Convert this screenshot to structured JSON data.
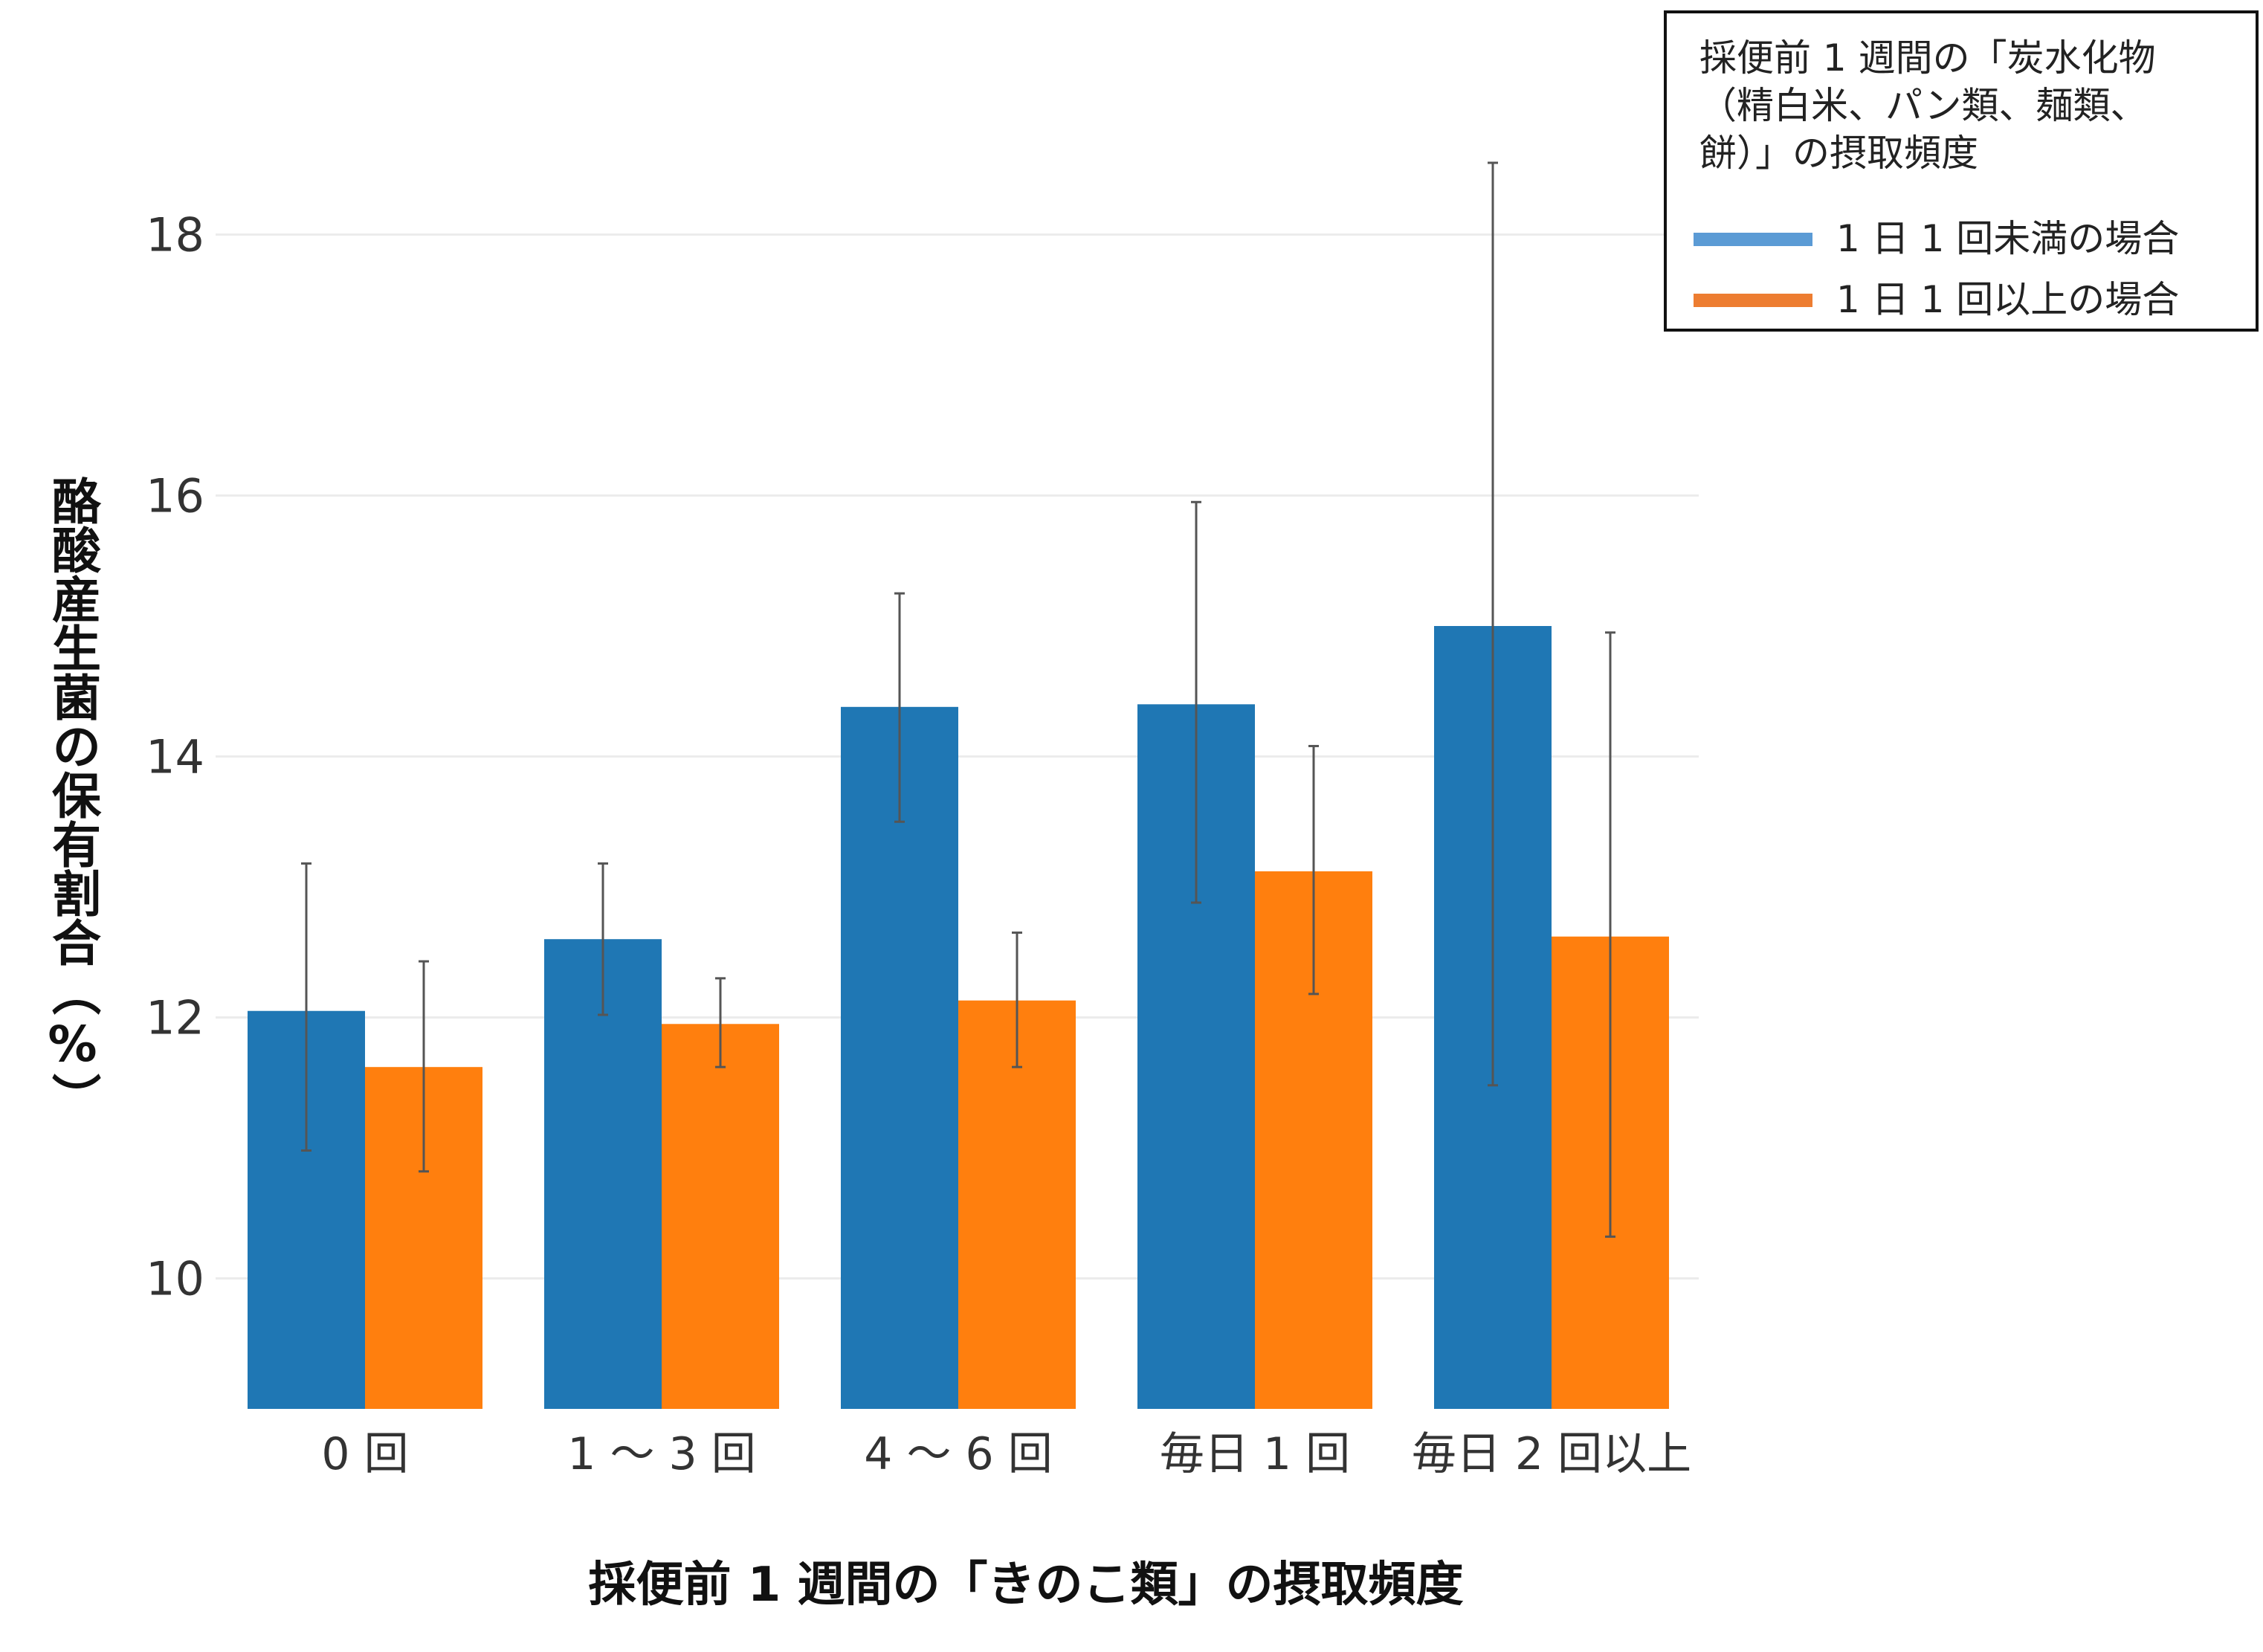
{
  "chart_data": {
    "type": "bar",
    "title": "",
    "xlabel": "採便前 1 週間の「きのこ類」の摂取頻度",
    "ylabel": "酪酸産生菌の保有割合（%）",
    "ylim": [
      9,
      19
    ],
    "yticks": [
      10,
      12,
      14,
      16,
      18
    ],
    "grid": true,
    "categories": [
      "0 回",
      "1 ～ 3 回",
      "4 ～ 6 回",
      "毎日 1 回",
      "毎日 2 回以上"
    ],
    "legend": {
      "title": [
        "採便前 1 週間の「炭水化物",
        "（精白米、パン類、麺類、",
        "餅）」の摂取頻度"
      ],
      "placement": "top-right"
    },
    "series": [
      {
        "name": "1 日 1 回未満の場合",
        "color": "#1f77b4",
        "legend_color": "#5b9bd5",
        "values": [
          12.05,
          12.6,
          14.38,
          14.4,
          15.0
        ],
        "error_low": [
          10.98,
          12.02,
          13.5,
          12.88,
          11.48
        ],
        "error_high": [
          13.18,
          13.18,
          15.25,
          15.95,
          18.55
        ]
      },
      {
        "name": "1 日 1 回以上の場合",
        "color": "#ff7f0e",
        "legend_color": "#ed7d31",
        "values": [
          11.62,
          11.95,
          12.13,
          13.12,
          12.62
        ],
        "error_low": [
          10.82,
          11.62,
          11.62,
          12.18,
          10.32
        ],
        "error_high": [
          12.43,
          12.3,
          12.65,
          14.08,
          14.95
        ]
      }
    ]
  }
}
